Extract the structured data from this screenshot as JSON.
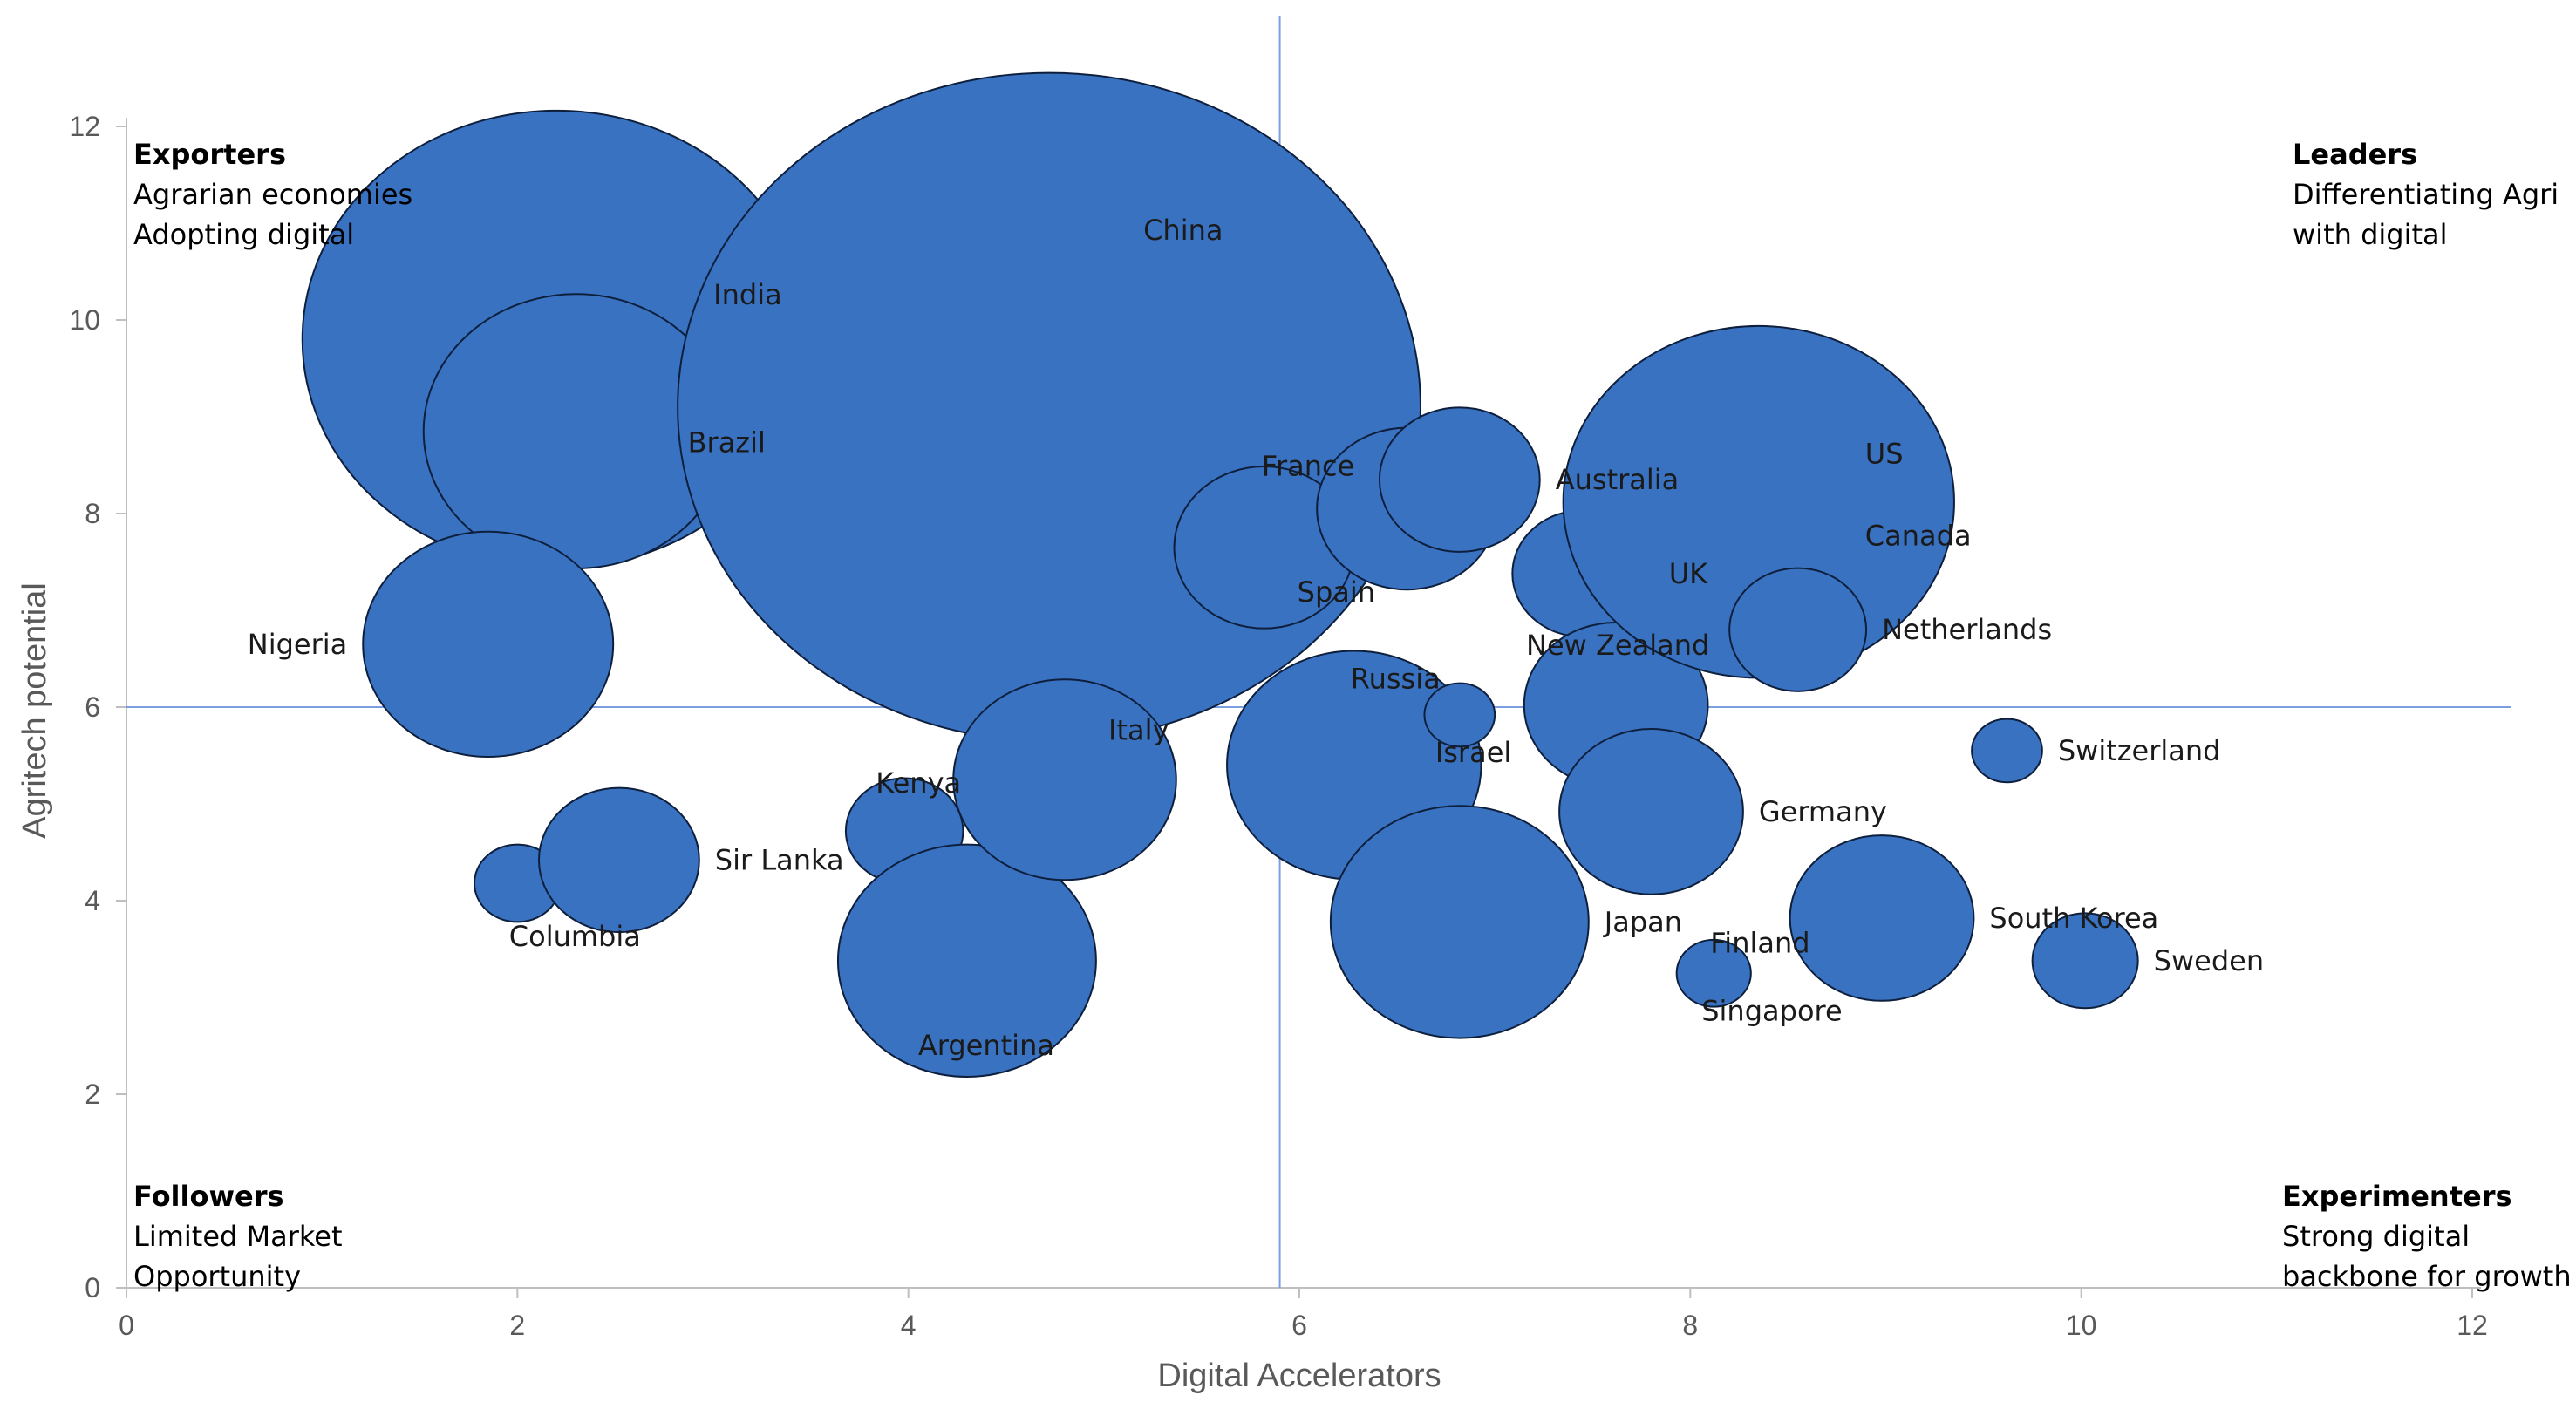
{
  "chart_data": {
    "type": "bubble",
    "xlabel": "Digital Accelerators",
    "ylabel": "Agritech potential",
    "xlim": [
      0,
      12
    ],
    "ylim": [
      0,
      12
    ],
    "x_ticks": [
      "0",
      "2",
      "4",
      "6",
      "8",
      "10",
      "12"
    ],
    "y_ticks": [
      "0",
      "2",
      "4",
      "6",
      "8",
      "10",
      "12"
    ],
    "reference_lines": {
      "x": 5.9,
      "y": 6
    },
    "points": [
      {
        "name": "India",
        "x": 2.2,
        "y": 9.8,
        "size": 1.3,
        "label_pos": "right"
      },
      {
        "name": "Brazil",
        "x": 2.3,
        "y": 8.85,
        "size": 0.78,
        "label_pos": "right"
      },
      {
        "name": "China",
        "x": 4.72,
        "y": 9.1,
        "size": 1.9,
        "label_pos": "top-right"
      },
      {
        "name": "Nigeria",
        "x": 1.85,
        "y": 6.65,
        "size": 0.64,
        "label_pos": "left"
      },
      {
        "name": "Columbia",
        "x": 2.0,
        "y": 4.18,
        "size": 0.22,
        "label_pos": "bottom"
      },
      {
        "name": "Sir Lanka",
        "x": 2.52,
        "y": 4.42,
        "size": 0.41,
        "label_pos": "right"
      },
      {
        "name": "Kenya",
        "x": 3.98,
        "y": 4.72,
        "size": 0.3,
        "label_pos": "top"
      },
      {
        "name": "Argentina",
        "x": 4.3,
        "y": 3.38,
        "size": 0.66,
        "label_pos": "bottom"
      },
      {
        "name": "Italy",
        "x": 4.8,
        "y": 5.25,
        "size": 0.57,
        "label_pos": "top-right"
      },
      {
        "name": "Spain",
        "x": 5.82,
        "y": 7.65,
        "size": 0.46,
        "label_pos": "bottom-right"
      },
      {
        "name": "France",
        "x": 6.55,
        "y": 8.05,
        "size": 0.46,
        "label_pos": "top-left"
      },
      {
        "name": "Australia",
        "x": 6.82,
        "y": 8.35,
        "size": 0.41,
        "label_pos": "right"
      },
      {
        "name": "Russia",
        "x": 6.28,
        "y": 5.4,
        "size": 0.65,
        "label_pos": "top-right"
      },
      {
        "name": "Israel",
        "x": 6.82,
        "y": 5.92,
        "size": 0.18,
        "label_pos": "bottom"
      },
      {
        "name": "Japan",
        "x": 6.82,
        "y": 3.78,
        "size": 0.66,
        "label_pos": "right"
      },
      {
        "name": "UK",
        "x": 7.45,
        "y": 7.38,
        "size": 0.36,
        "label_pos": "right"
      },
      {
        "name": "New Zealand",
        "x": 7.62,
        "y": 6.02,
        "size": 0.47,
        "label_pos": "top"
      },
      {
        "name": "Germany",
        "x": 7.8,
        "y": 4.92,
        "size": 0.47,
        "label_pos": "right"
      },
      {
        "name": "US",
        "x": 8.35,
        "y": 8.12,
        "size": 1.0,
        "label_pos": "top-right"
      },
      {
        "name": "Canada",
        "x": 8.35,
        "y": 8.12,
        "size": 0.0,
        "label_pos": "bottom-right"
      },
      {
        "name": "Netherlands",
        "x": 8.55,
        "y": 6.8,
        "size": 0.35,
        "label_pos": "right"
      },
      {
        "name": "Finland",
        "x": 8.12,
        "y": 3.25,
        "size": 0.19,
        "label_pos": "top-right"
      },
      {
        "name": "Singapore",
        "x": 8.12,
        "y": 3.25,
        "size": 0.0,
        "label_pos": "bottom-right"
      },
      {
        "name": "South Korea",
        "x": 8.98,
        "y": 3.82,
        "size": 0.47,
        "label_pos": "right"
      },
      {
        "name": "Switzerland",
        "x": 9.62,
        "y": 5.55,
        "size": 0.18,
        "label_pos": "right"
      },
      {
        "name": "Sweden",
        "x": 10.02,
        "y": 3.38,
        "size": 0.27,
        "label_pos": "right"
      }
    ],
    "quadrants": [
      {
        "id": "top-left",
        "title": "Exporters",
        "lines": [
          "Agrarian economies",
          "Adopting digital"
        ]
      },
      {
        "id": "top-right",
        "title": "Leaders",
        "lines": [
          "Differentiating Agri",
          "with digital"
        ]
      },
      {
        "id": "bottom-left",
        "title": "Followers",
        "lines": [
          "Limited Market",
          "Opportunity"
        ]
      },
      {
        "id": "bottom-right",
        "title": "Experimenters",
        "lines": [
          "Strong digital",
          "backbone for growth"
        ]
      }
    ]
  },
  "colors": {
    "bubble_fill": "#3a72c2",
    "bubble_stroke": "#0d1f3c",
    "axis_line": "#bfbfbf",
    "reference_line": "#7a9ee0",
    "tick_text": "#595959"
  }
}
